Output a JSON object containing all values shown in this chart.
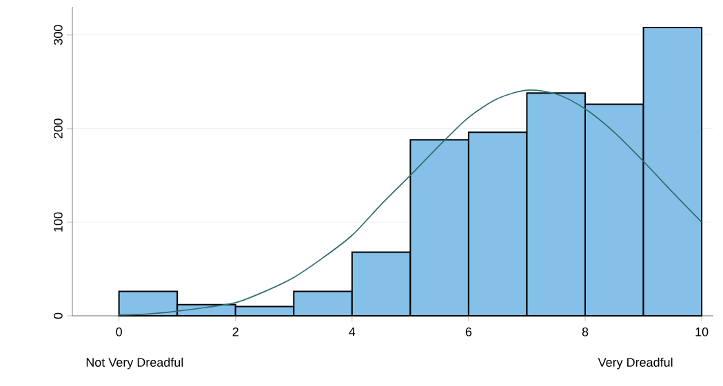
{
  "chart_data": {
    "type": "histogram",
    "bins": [
      0,
      1,
      2,
      3,
      4,
      5,
      6,
      7,
      8,
      9,
      10
    ],
    "series": [
      {
        "color": "#85c0e9",
        "values": [
          26,
          12,
          10,
          26,
          68,
          188,
          196,
          238,
          226,
          308
        ]
      },
      {
        "type": "line",
        "color": "#2e6e6b",
        "x": [
          0,
          0.5,
          1,
          1.5,
          2,
          2.5,
          3,
          3.5,
          4,
          4.5,
          5,
          5.5,
          6,
          6.5,
          7,
          7.5,
          8,
          8.5,
          9,
          9.5,
          10
        ],
        "values": [
          1,
          2,
          5,
          9,
          14,
          26,
          41,
          62,
          86,
          119,
          150,
          182,
          212,
          232,
          241,
          237,
          221,
          196,
          165,
          132,
          100
        ]
      }
    ],
    "xlim": [
      -0.8,
      10.2
    ],
    "ylim": [
      0,
      330
    ],
    "xticks": [
      0,
      2,
      4,
      6,
      8,
      10
    ],
    "yticks": [
      0,
      100,
      200,
      300
    ],
    "grid": "y",
    "marker": "none",
    "line_style": "solid",
    "annotations": [
      "Not Very Dreadful",
      "Very Dreadful"
    ]
  }
}
